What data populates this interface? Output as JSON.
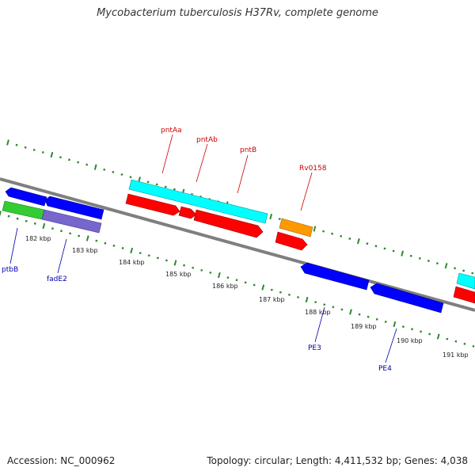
{
  "title": "Mycobacterium tuberculosis H37Rv, complete genome",
  "footer": {
    "accession": "Accession: NC_000962",
    "info": "Topology: circular; Length: 4,411,532 bp; Genes: 4,038"
  },
  "colors": {
    "backbone": "#808080",
    "ticks": "#2a8a2a",
    "label_top": "#cc0000",
    "label_bottom": "#0000aa",
    "cyan": "#00ffff",
    "red": "#ff0000",
    "blue": "#0000ff",
    "green": "#33cc33",
    "purple": "#7766cc",
    "orange": "#ff9900"
  },
  "kbp_labels": [
    "182 kbp",
    "183 kbp",
    "184 kbp",
    "185 kbp",
    "186 kbp",
    "187 kbp",
    "188 kbp",
    "189 kbp",
    "190 kbp",
    "191 kbp"
  ],
  "gene_labels_top": [
    "pntAa",
    "pntAb",
    "pntB",
    "Rv0158"
  ],
  "gene_labels_bottom": [
    "ptbB",
    "fadE2",
    "PE3",
    "PE4"
  ]
}
